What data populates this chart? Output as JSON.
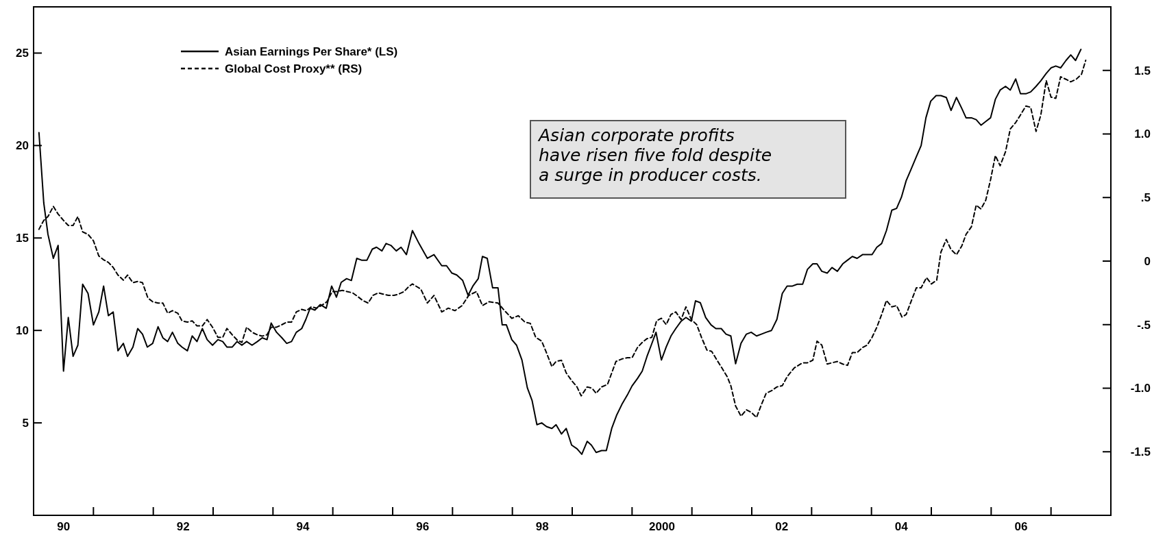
{
  "chart_data": {
    "type": "line",
    "xlim": [
      1989.5,
      2007.5
    ],
    "xticks": [
      {
        "value": 1990,
        "label": "90"
      },
      {
        "value": 1990.5,
        "label": null
      },
      {
        "value": 1991.5,
        "label": null
      },
      {
        "value": 1992,
        "label": "92"
      },
      {
        "value": 1992.5,
        "label": null
      },
      {
        "value": 1993.5,
        "label": null
      },
      {
        "value": 1994,
        "label": "94"
      },
      {
        "value": 1994.5,
        "label": null
      },
      {
        "value": 1995.5,
        "label": null
      },
      {
        "value": 1996,
        "label": "96"
      },
      {
        "value": 1996.5,
        "label": null
      },
      {
        "value": 1997.5,
        "label": null
      },
      {
        "value": 1998,
        "label": "98"
      },
      {
        "value": 1998.5,
        "label": null
      },
      {
        "value": 1999.5,
        "label": null
      },
      2000,
      {
        "value": 2000.5,
        "label": null
      },
      {
        "value": 2001.5,
        "label": null
      },
      {
        "value": 2002,
        "label": "02"
      },
      {
        "value": 2002.5,
        "label": null
      },
      {
        "value": 2003.5,
        "label": null
      },
      {
        "value": 2004,
        "label": "04"
      },
      {
        "value": 2004.5,
        "label": null
      },
      {
        "value": 2005.5,
        "label": null
      },
      {
        "value": 2006,
        "label": "06"
      },
      {
        "value": 2006.5,
        "label": null
      }
    ],
    "ylim": [
      0,
      27.5
    ],
    "yticks": [
      5,
      10,
      15,
      20,
      25
    ],
    "y2lim": [
      -2,
      2
    ],
    "y2ticks": [
      {
        "value": 1.5,
        "label": "1.5"
      },
      {
        "value": 1,
        "label": "1.0"
      },
      {
        "value": 0.5,
        "label": ".5"
      },
      0,
      {
        "value": -0.5,
        "label": "-.5"
      },
      {
        "value": -1,
        "label": "-1.0"
      },
      -1.5
    ],
    "legend": "top left",
    "grid": false,
    "annotations": [
      "Asian corporate profits\nhave risen five fold despite\na surge in producer costs."
    ],
    "series": [
      {
        "name": "Asian Earnings Per Share* (LS)",
        "color": "#000000",
        "line_style": "solid",
        "x": [
          1989.59,
          1989.67,
          1989.74,
          1989.83,
          1989.91,
          1990.0,
          1990.08,
          1990.16,
          1990.24,
          1990.32,
          1990.41,
          1990.5,
          1990.59,
          1990.67,
          1990.75,
          1990.83,
          1990.91,
          1991.0,
          1991.07,
          1991.16,
          1991.24,
          1991.32,
          1991.4,
          1991.49,
          1991.58,
          1991.66,
          1991.74,
          1991.82,
          1991.91,
          1991.98,
          1992.07,
          1992.15,
          1992.23,
          1992.32,
          1992.4,
          1992.49,
          1992.58,
          1992.66,
          1992.73,
          1992.82,
          1992.9,
          1992.98,
          1993.06,
          1993.15,
          1993.24,
          1993.32,
          1993.4,
          1993.47,
          1993.56,
          1993.65,
          1993.73,
          1993.81,
          1993.89,
          1993.98,
          1994.05,
          1994.12,
          1994.2,
          1994.29,
          1994.39,
          1994.48,
          1994.56,
          1994.64,
          1994.73,
          1994.81,
          1994.9,
          1994.98,
          1995.07,
          1995.16,
          1995.23,
          1995.32,
          1995.39,
          1995.47,
          1995.56,
          1995.64,
          1995.73,
          1995.83,
          1995.94,
          1996.08,
          1996.19,
          1996.32,
          1996.4,
          1996.49,
          1996.57,
          1996.67,
          1996.76,
          1996.84,
          1996.93,
          1997.0,
          1997.08,
          1997.17,
          1997.26,
          1997.33,
          1997.4,
          1997.49,
          1997.57,
          1997.66,
          1997.75,
          1997.83,
          1997.91,
          1997.99,
          1998.07,
          1998.16,
          1998.23,
          1998.32,
          1998.4,
          1998.49,
          1998.58,
          1998.66,
          1998.75,
          1998.82,
          1998.9,
          1998.99,
          1999.07,
          1999.16,
          1999.24,
          1999.33,
          1999.42,
          1999.5,
          1999.59,
          1999.67,
          1999.75,
          1999.82,
          1999.9,
          1999.99,
          2000.07,
          2000.15,
          2000.23,
          2000.32,
          2000.4,
          2000.49,
          2000.56,
          2000.64,
          2000.73,
          2000.82,
          2000.9,
          2000.99,
          2001.07,
          2001.15,
          2001.23,
          2001.32,
          2001.41,
          2001.49,
          2001.58,
          2001.66,
          2001.74,
          2001.83,
          2001.92,
          2002.01,
          2002.09,
          2002.18,
          2002.26,
          2002.35,
          2002.43,
          2002.52,
          2002.59,
          2002.67,
          2002.76,
          2002.84,
          2002.93,
          2003.02,
          2003.1,
          2003.18,
          2003.26,
          2003.35,
          2003.43,
          2003.51,
          2003.59,
          2003.67,
          2003.75,
          2003.84,
          2003.92,
          2004.0,
          2004.08,
          2004.16,
          2004.25,
          2004.33,
          2004.41,
          2004.49,
          2004.58,
          2004.66,
          2004.75,
          2004.83,
          2004.92,
          2005.01,
          2005.08,
          2005.17,
          2005.25,
          2005.33,
          2005.41,
          2005.49,
          2005.57,
          2005.65,
          2005.74,
          2005.82,
          2005.91,
          2005.99,
          2006.08,
          2006.16,
          2006.25,
          2006.33,
          2006.42,
          2006.5,
          2006.58,
          2006.66,
          2006.75,
          2006.83,
          2006.91,
          2007.0
        ],
        "values": [
          20.7,
          16.9,
          15.2,
          13.9,
          14.6,
          7.8,
          10.7,
          8.6,
          9.2,
          12.5,
          12.0,
          10.3,
          11.0,
          12.4,
          10.8,
          11.0,
          8.9,
          9.3,
          8.6,
          9.1,
          10.1,
          9.8,
          9.1,
          9.3,
          10.2,
          9.6,
          9.4,
          9.9,
          9.3,
          9.1,
          8.9,
          9.7,
          9.4,
          10.1,
          9.5,
          9.2,
          9.5,
          9.4,
          9.1,
          9.1,
          9.4,
          9.2,
          9.4,
          9.2,
          9.4,
          9.6,
          9.5,
          10.4,
          9.9,
          9.6,
          9.3,
          9.4,
          9.9,
          10.1,
          10.6,
          11.2,
          11.1,
          11.4,
          11.2,
          12.4,
          11.8,
          12.6,
          12.8,
          12.7,
          13.9,
          13.8,
          13.8,
          14.4,
          14.5,
          14.3,
          14.7,
          14.6,
          14.3,
          14.5,
          14.1,
          15.4,
          14.7,
          13.9,
          14.1,
          13.5,
          13.5,
          13.1,
          13.0,
          12.7,
          11.9,
          12.4,
          12.8,
          14.0,
          13.9,
          12.3,
          12.3,
          10.3,
          10.3,
          9.5,
          9.2,
          8.4,
          6.9,
          6.2,
          4.9,
          5.0,
          4.8,
          4.7,
          4.9,
          4.4,
          4.7,
          3.8,
          3.6,
          3.3,
          4.0,
          3.8,
          3.4,
          3.5,
          3.5,
          4.7,
          5.4,
          6.0,
          6.5,
          7.0,
          7.4,
          7.8,
          8.6,
          9.2,
          9.9,
          8.4,
          9.1,
          9.7,
          10.1,
          10.5,
          10.7,
          10.5,
          11.6,
          11.5,
          10.7,
          10.3,
          10.1,
          10.1,
          9.8,
          9.7,
          8.2,
          9.3,
          9.8,
          9.9,
          9.7,
          9.8,
          9.9,
          10.0,
          10.6,
          12.0,
          12.4,
          12.4,
          12.5,
          12.5,
          13.3,
          13.6,
          13.6,
          13.2,
          13.1,
          13.4,
          13.2,
          13.6,
          13.8,
          14.0,
          13.9,
          14.1,
          14.1,
          14.1,
          14.5,
          14.7,
          15.4,
          16.5,
          16.6,
          17.2,
          18.1,
          18.7,
          19.4,
          20.0,
          21.5,
          22.4,
          22.7,
          22.7,
          22.6,
          21.9,
          22.6,
          22.0,
          21.5,
          21.5,
          21.4,
          21.1,
          21.3,
          21.5,
          22.5,
          23.0,
          23.2,
          23.0,
          23.6,
          22.8,
          22.8,
          22.9,
          23.2,
          23.5,
          23.9,
          24.2,
          24.3,
          24.2,
          24.6,
          24.9,
          24.6,
          25.2
        ]
      },
      {
        "name": "Global Cost Proxy** (RS)",
        "color": "#000000",
        "line_style": "dashed",
        "axis": "y2",
        "x": [
          1989.59,
          1989.67,
          1989.74,
          1989.83,
          1989.91,
          1990.0,
          1990.08,
          1990.16,
          1990.24,
          1990.32,
          1990.41,
          1990.5,
          1990.59,
          1990.67,
          1990.75,
          1990.83,
          1990.91,
          1991.0,
          1991.07,
          1991.16,
          1991.24,
          1991.32,
          1991.41,
          1991.49,
          1991.58,
          1991.66,
          1991.74,
          1991.82,
          1991.91,
          1991.98,
          1992.07,
          1992.15,
          1992.23,
          1992.32,
          1992.4,
          1992.49,
          1992.58,
          1992.66,
          1992.73,
          1992.82,
          1992.9,
          1992.98,
          1993.06,
          1993.15,
          1993.24,
          1993.32,
          1993.4,
          1993.47,
          1993.56,
          1993.65,
          1993.73,
          1993.81,
          1993.89,
          1993.98,
          1994.06,
          1994.14,
          1994.23,
          1994.31,
          1994.4,
          1994.49,
          1994.57,
          1994.66,
          1994.74,
          1994.83,
          1994.92,
          1995.0,
          1995.09,
          1995.17,
          1995.26,
          1995.34,
          1995.43,
          1995.52,
          1995.6,
          1995.69,
          1995.77,
          1995.83,
          1995.97,
          1996.08,
          1996.19,
          1996.32,
          1996.43,
          1996.54,
          1996.66,
          1996.77,
          1996.9,
          1997.0,
          1997.11,
          1997.26,
          1997.37,
          1997.49,
          1997.6,
          1997.71,
          1997.8,
          1997.89,
          1997.99,
          1998.06,
          1998.16,
          1998.23,
          1998.32,
          1998.4,
          1998.49,
          1998.58,
          1998.65,
          1998.75,
          1998.83,
          1998.9,
          1998.99,
          1999.09,
          1999.16,
          1999.23,
          1999.33,
          1999.42,
          1999.5,
          1999.59,
          1999.67,
          1999.75,
          1999.83,
          1999.91,
          1999.99,
          2000.07,
          2000.15,
          2000.23,
          2000.32,
          2000.4,
          2000.49,
          2000.58,
          2000.66,
          2000.75,
          2000.83,
          2000.92,
          2001.0,
          2001.09,
          2001.15,
          2001.23,
          2001.32,
          2001.41,
          2001.49,
          2001.58,
          2001.66,
          2001.74,
          2001.83,
          2001.92,
          2002.01,
          2002.09,
          2002.21,
          2002.35,
          2002.43,
          2002.52,
          2002.59,
          2002.67,
          2002.76,
          2002.84,
          2002.93,
          2003.02,
          2003.1,
          2003.18,
          2003.26,
          2003.35,
          2003.43,
          2003.51,
          2003.59,
          2003.67,
          2003.75,
          2003.84,
          2003.92,
          2004.01,
          2004.08,
          2004.16,
          2004.25,
          2004.33,
          2004.42,
          2004.5,
          2004.59,
          2004.66,
          2004.75,
          2004.83,
          2004.92,
          2005.01,
          2005.08,
          2005.17,
          2005.25,
          2005.33,
          2005.41,
          2005.49,
          2005.57,
          2005.65,
          2005.74,
          2005.82,
          2005.91,
          2005.99,
          2006.08,
          2006.16,
          2006.25,
          2006.33,
          2006.42,
          2006.5,
          2006.58,
          2006.66,
          2006.75,
          2006.83,
          2006.92,
          2007.01,
          2007.08
        ],
        "values": [
          0.25,
          0.32,
          0.35,
          0.43,
          0.37,
          0.32,
          0.28,
          0.28,
          0.35,
          0.23,
          0.21,
          0.16,
          0.04,
          0.01,
          -0.01,
          -0.05,
          -0.11,
          -0.15,
          -0.11,
          -0.17,
          -0.16,
          -0.17,
          -0.29,
          -0.32,
          -0.33,
          -0.33,
          -0.41,
          -0.39,
          -0.41,
          -0.47,
          -0.48,
          -0.47,
          -0.51,
          -0.51,
          -0.46,
          -0.52,
          -0.6,
          -0.6,
          -0.53,
          -0.58,
          -0.62,
          -0.64,
          -0.52,
          -0.56,
          -0.58,
          -0.59,
          -0.58,
          -0.52,
          -0.52,
          -0.5,
          -0.48,
          -0.48,
          -0.4,
          -0.38,
          -0.39,
          -0.36,
          -0.37,
          -0.35,
          -0.32,
          -0.24,
          -0.24,
          -0.23,
          -0.24,
          -0.25,
          -0.28,
          -0.31,
          -0.33,
          -0.27,
          -0.25,
          -0.26,
          -0.27,
          -0.27,
          -0.26,
          -0.24,
          -0.2,
          -0.18,
          -0.22,
          -0.33,
          -0.27,
          -0.4,
          -0.37,
          -0.39,
          -0.35,
          -0.27,
          -0.24,
          -0.35,
          -0.32,
          -0.33,
          -0.39,
          -0.45,
          -0.43,
          -0.48,
          -0.49,
          -0.6,
          -0.63,
          -0.71,
          -0.83,
          -0.79,
          -0.78,
          -0.88,
          -0.94,
          -0.99,
          -1.06,
          -0.99,
          -1.0,
          -1.04,
          -0.99,
          -0.97,
          -0.88,
          -0.79,
          -0.77,
          -0.76,
          -0.76,
          -0.68,
          -0.64,
          -0.61,
          -0.6,
          -0.47,
          -0.45,
          -0.5,
          -0.42,
          -0.4,
          -0.46,
          -0.36,
          -0.46,
          -0.5,
          -0.6,
          -0.7,
          -0.71,
          -0.78,
          -0.84,
          -0.91,
          -0.98,
          -1.14,
          -1.22,
          -1.17,
          -1.19,
          -1.23,
          -1.13,
          -1.04,
          -1.02,
          -0.99,
          -0.98,
          -0.91,
          -0.84,
          -0.8,
          -0.8,
          -0.78,
          -0.63,
          -0.66,
          -0.81,
          -0.8,
          -0.79,
          -0.81,
          -0.82,
          -0.72,
          -0.72,
          -0.68,
          -0.66,
          -0.6,
          -0.52,
          -0.42,
          -0.31,
          -0.36,
          -0.35,
          -0.44,
          -0.42,
          -0.32,
          -0.21,
          -0.21,
          -0.13,
          -0.18,
          -0.15,
          0.07,
          0.17,
          0.09,
          0.05,
          0.12,
          0.21,
          0.27,
          0.44,
          0.41,
          0.48,
          0.64,
          0.83,
          0.75,
          0.86,
          1.04,
          1.09,
          1.15,
          1.22,
          1.21,
          1.02,
          1.15,
          1.42,
          1.29,
          1.28,
          1.45,
          1.43,
          1.41,
          1.43,
          1.47,
          1.58
        ]
      }
    ]
  }
}
